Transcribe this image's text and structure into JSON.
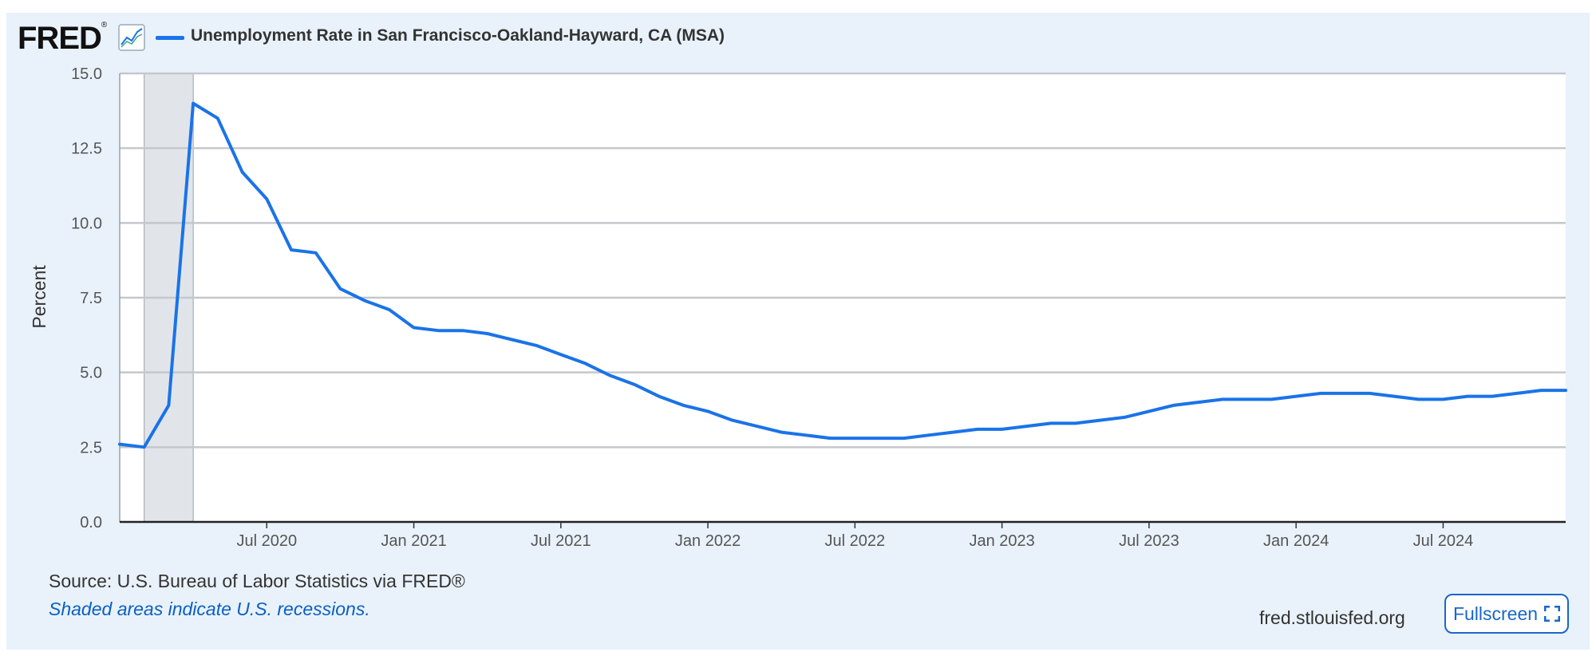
{
  "header": {
    "logo_text": "FRED",
    "logo_mark": "®",
    "series_title": "Unemployment Rate in San Francisco-Oakland-Hayward, CA (MSA)"
  },
  "footer": {
    "source": "Source: U.S. Bureau of Labor Statistics via FRED®",
    "recession_note": "Shaded areas indicate U.S. recessions.",
    "site": "fred.stlouisfed.org",
    "fullscreen_label": "Fullscreen"
  },
  "icons": {
    "chart": "chart-line-icon",
    "fullscreen": "fullscreen-icon"
  },
  "colors": {
    "series": "#1a73e8",
    "recession": "#e1e5ea",
    "background": "#e9f2fa"
  },
  "chart_data": {
    "type": "line",
    "title": "Unemployment Rate in San Francisco-Oakland-Hayward, CA (MSA)",
    "xlabel": "",
    "ylabel": "Percent",
    "ylim": [
      0,
      15
    ],
    "yticks": [
      "0.0",
      "2.5",
      "5.0",
      "7.5",
      "10.0",
      "12.5",
      "15.0"
    ],
    "xticks": [
      {
        "label": "Jul 2020",
        "date": "2020-07"
      },
      {
        "label": "Jan 2021",
        "date": "2021-01"
      },
      {
        "label": "Jul 2021",
        "date": "2021-07"
      },
      {
        "label": "Jan 2022",
        "date": "2022-01"
      },
      {
        "label": "Jul 2022",
        "date": "2022-07"
      },
      {
        "label": "Jan 2023",
        "date": "2023-01"
      },
      {
        "label": "Jul 2023",
        "date": "2023-07"
      },
      {
        "label": "Jan 2024",
        "date": "2024-01"
      },
      {
        "label": "Jul 2024",
        "date": "2024-07"
      }
    ],
    "x_range": [
      "2020-01",
      "2024-12"
    ],
    "grid": true,
    "recessions": [
      {
        "start": "2020-02",
        "end": "2020-04"
      }
    ],
    "series": [
      {
        "name": "Unemployment Rate in San Francisco-Oakland-Hayward, CA (MSA)",
        "x": [
          "2020-01",
          "2020-02",
          "2020-03",
          "2020-04",
          "2020-05",
          "2020-06",
          "2020-07",
          "2020-08",
          "2020-09",
          "2020-10",
          "2020-11",
          "2020-12",
          "2021-01",
          "2021-02",
          "2021-03",
          "2021-04",
          "2021-05",
          "2021-06",
          "2021-07",
          "2021-08",
          "2021-09",
          "2021-10",
          "2021-11",
          "2021-12",
          "2022-01",
          "2022-02",
          "2022-03",
          "2022-04",
          "2022-05",
          "2022-06",
          "2022-07",
          "2022-08",
          "2022-09",
          "2022-10",
          "2022-11",
          "2022-12",
          "2023-01",
          "2023-02",
          "2023-03",
          "2023-04",
          "2023-05",
          "2023-06",
          "2023-07",
          "2023-08",
          "2023-09",
          "2023-10",
          "2023-11",
          "2023-12",
          "2024-01",
          "2024-02",
          "2024-03",
          "2024-04",
          "2024-05",
          "2024-06",
          "2024-07",
          "2024-08",
          "2024-09",
          "2024-10",
          "2024-11",
          "2024-12"
        ],
        "values": [
          2.6,
          2.5,
          3.9,
          14.0,
          13.5,
          11.7,
          10.8,
          9.1,
          9.0,
          7.8,
          7.4,
          7.1,
          6.5,
          6.4,
          6.4,
          6.3,
          6.1,
          5.9,
          5.6,
          5.3,
          4.9,
          4.6,
          4.2,
          3.9,
          3.7,
          3.4,
          3.2,
          3.0,
          2.9,
          2.8,
          2.8,
          2.8,
          2.8,
          2.9,
          3.0,
          3.1,
          3.1,
          3.2,
          3.3,
          3.3,
          3.4,
          3.5,
          3.7,
          3.9,
          4.0,
          4.1,
          4.1,
          4.1,
          4.2,
          4.3,
          4.3,
          4.3,
          4.2,
          4.1,
          4.1,
          4.2,
          4.2,
          4.3,
          4.4,
          4.4
        ]
      }
    ]
  }
}
